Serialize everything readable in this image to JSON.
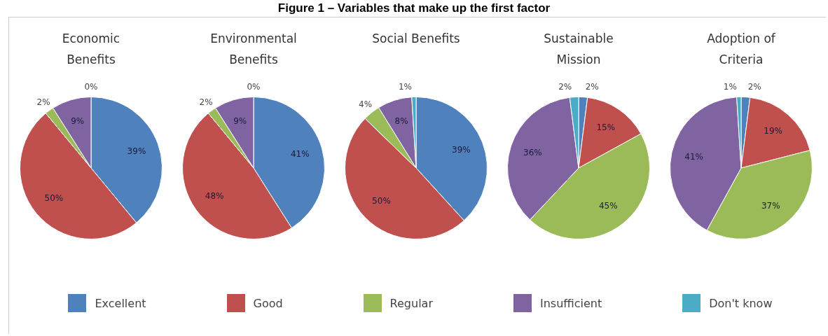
{
  "chart_data": [
    {
      "type": "pie",
      "title": "Economic Benefits",
      "categories": [
        "Excellent",
        "Good",
        "Regular",
        "Insufficient",
        "Don't know"
      ],
      "values": [
        39,
        50,
        2,
        9,
        0
      ],
      "value_labels": [
        "39%",
        "50%",
        "2%",
        "9%",
        "0%"
      ],
      "colors": [
        "#4f81bd",
        "#c0504d",
        "#9bbb59",
        "#8064a2",
        "#4bacc6"
      ],
      "legend": "bottom",
      "annotations": [
        "Figure 1 – Variables that make up the first factor"
      ]
    },
    {
      "type": "pie",
      "title": "Environmental Benefits",
      "values": [
        41,
        48,
        2,
        9,
        0
      ],
      "value_labels": [
        "41%",
        "48%",
        "2%",
        "9%",
        "0%"
      ],
      "colors": [
        "#4f81bd",
        "#c0504d",
        "#9bbb59",
        "#8064a2",
        "#4bacc6"
      ]
    },
    {
      "type": "pie",
      "title": "Social Benefits",
      "values": [
        39,
        50,
        4,
        8,
        1
      ],
      "value_labels": [
        "39%",
        "50%",
        "4%",
        "8%",
        "1%"
      ],
      "colors": [
        "#4f81bd",
        "#c0504d",
        "#9bbb59",
        "#8064a2",
        "#4bacc6"
      ]
    },
    {
      "type": "pie",
      "title": "Sustainable Mission",
      "values": [
        2,
        15,
        45,
        36,
        2
      ],
      "value_labels": [
        "2%",
        "15%",
        "45%",
        "36%",
        "2%"
      ],
      "colors": [
        "#4f81bd",
        "#c0504d",
        "#9bbb59",
        "#8064a2",
        "#4bacc6"
      ]
    },
    {
      "type": "pie",
      "title": "Adoption of Criteria",
      "values": [
        2,
        19,
        37,
        41,
        1
      ],
      "value_labels": [
        "2%",
        "19%",
        "37%",
        "41%",
        "1%"
      ],
      "colors": [
        "#4f81bd",
        "#c0504d",
        "#9bbb59",
        "#8064a2",
        "#4bacc6"
      ]
    }
  ]
}
